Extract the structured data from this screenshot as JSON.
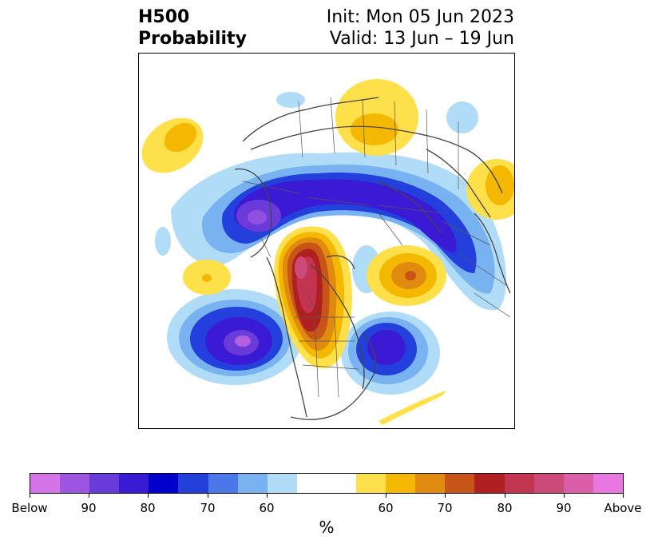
{
  "header": {
    "title_line1": "H500",
    "title_line2": "Probability",
    "init_text": "Init: Mon 05 Jun 2023",
    "valid_text": "Valid: 13 Jun – 19 Jun"
  },
  "colorbar": {
    "unit": "%",
    "colors": [
      "#d474e8",
      "#9b55e0",
      "#6a3bd8",
      "#3a1ad4",
      "#0000cc",
      "#2440dc",
      "#4a78e8",
      "#78b2f0",
      "#b0dcf8",
      "#ffffff",
      "#ffffff",
      "#fde04a",
      "#f5b800",
      "#e08a10",
      "#c85518",
      "#b02020",
      "#c23450",
      "#cc4a7a",
      "#da5fa8",
      "#e878e0"
    ],
    "tick_labels": [
      "Below",
      "90",
      "80",
      "70",
      "60",
      "60",
      "70",
      "80",
      "90",
      "Above"
    ]
  },
  "map": {
    "below_colors": {
      "60": "#b0dcf8",
      "70": "#78b2f0",
      "80": "#2440dc",
      "90": "#3a1ad4",
      "95": "#8f4fe0"
    },
    "above_colors": {
      "60": "#fde04a",
      "70": "#f5b800",
      "80": "#e08a10",
      "85": "#c85518",
      "90": "#b02020",
      "95": "#c23450",
      "99": "#cc4a7a"
    }
  }
}
